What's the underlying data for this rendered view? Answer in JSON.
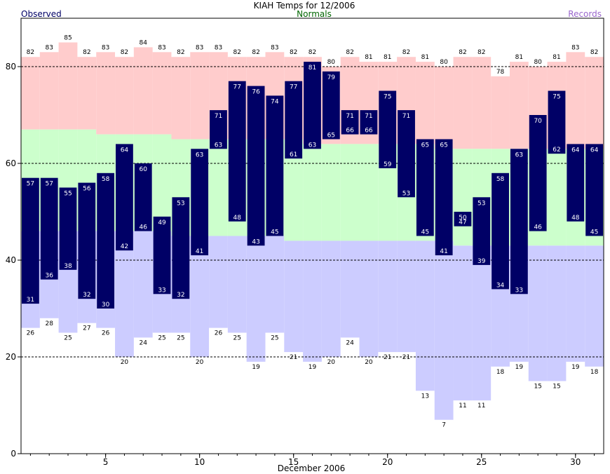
{
  "chart_data": {
    "type": "bar",
    "title": "KIAH Temps for 12/2006",
    "xlabel": "December 2006",
    "ylabel": "",
    "ylim": [
      0,
      90
    ],
    "xlim": [
      0.5,
      31.5
    ],
    "y_ticks": [
      0,
      20,
      40,
      60,
      80
    ],
    "x_ticks": [
      5,
      10,
      15,
      20,
      25,
      30
    ],
    "grid": true,
    "legend": {
      "observed": "Observed",
      "normals": "Normals",
      "records": "Records"
    },
    "colors": {
      "observed": "#000066",
      "observed_text": "#ffffff",
      "normal_band": "#ccffcc",
      "record_high_band": "#ffcccc",
      "record_low_band": "#ccccff",
      "normals_legend": "#006600",
      "records_legend": "#9966cc",
      "observed_legend": "#000066"
    },
    "days": [
      1,
      2,
      3,
      4,
      5,
      6,
      7,
      8,
      9,
      10,
      11,
      12,
      13,
      14,
      15,
      16,
      17,
      18,
      19,
      20,
      21,
      22,
      23,
      24,
      25,
      26,
      27,
      28,
      29,
      30,
      31
    ],
    "series": [
      {
        "name": "Observed",
        "key": "obs_high",
        "values": [
          57,
          57,
          55,
          56,
          58,
          64,
          60,
          49,
          53,
          63,
          71,
          77,
          76,
          74,
          77,
          81,
          79,
          71,
          71,
          75,
          71,
          65,
          65,
          50,
          53,
          58,
          63,
          70,
          75,
          64,
          64
        ]
      },
      {
        "name": "Observed",
        "key": "obs_low",
        "values": [
          31,
          36,
          38,
          32,
          30,
          42,
          46,
          33,
          32,
          41,
          63,
          48,
          43,
          45,
          61,
          63,
          65,
          66,
          66,
          59,
          53,
          45,
          41,
          47,
          39,
          34,
          33,
          46,
          62,
          48,
          45
        ]
      },
      {
        "name": "Records",
        "key": "record_high",
        "values": [
          82,
          83,
          85,
          82,
          83,
          82,
          84,
          83,
          82,
          83,
          83,
          82,
          82,
          83,
          82,
          82,
          80,
          82,
          81,
          81,
          82,
          81,
          80,
          82,
          82,
          78,
          81,
          80,
          81,
          83,
          82
        ]
      },
      {
        "name": "Records",
        "key": "record_low",
        "values": [
          26,
          28,
          25,
          27,
          26,
          20,
          24,
          25,
          25,
          20,
          26,
          25,
          19,
          25,
          21,
          19,
          20,
          24,
          20,
          21,
          21,
          13,
          7,
          11,
          11,
          18,
          19,
          15,
          15,
          19,
          18
        ]
      },
      {
        "name": "Normals",
        "key": "normal_high",
        "values": [
          67,
          67,
          67,
          67,
          66,
          66,
          66,
          66,
          65,
          65,
          65,
          65,
          65,
          65,
          65,
          64,
          64,
          64,
          64,
          64,
          64,
          64,
          63,
          63,
          63,
          63,
          63,
          63,
          63,
          63,
          63
        ]
      },
      {
        "name": "Normals",
        "key": "normal_low",
        "values": [
          46,
          46,
          46,
          46,
          46,
          46,
          46,
          46,
          45,
          45,
          45,
          45,
          45,
          45,
          44,
          44,
          44,
          44,
          44,
          44,
          44,
          44,
          44,
          43,
          43,
          43,
          43,
          43,
          43,
          43,
          43
        ]
      }
    ]
  }
}
